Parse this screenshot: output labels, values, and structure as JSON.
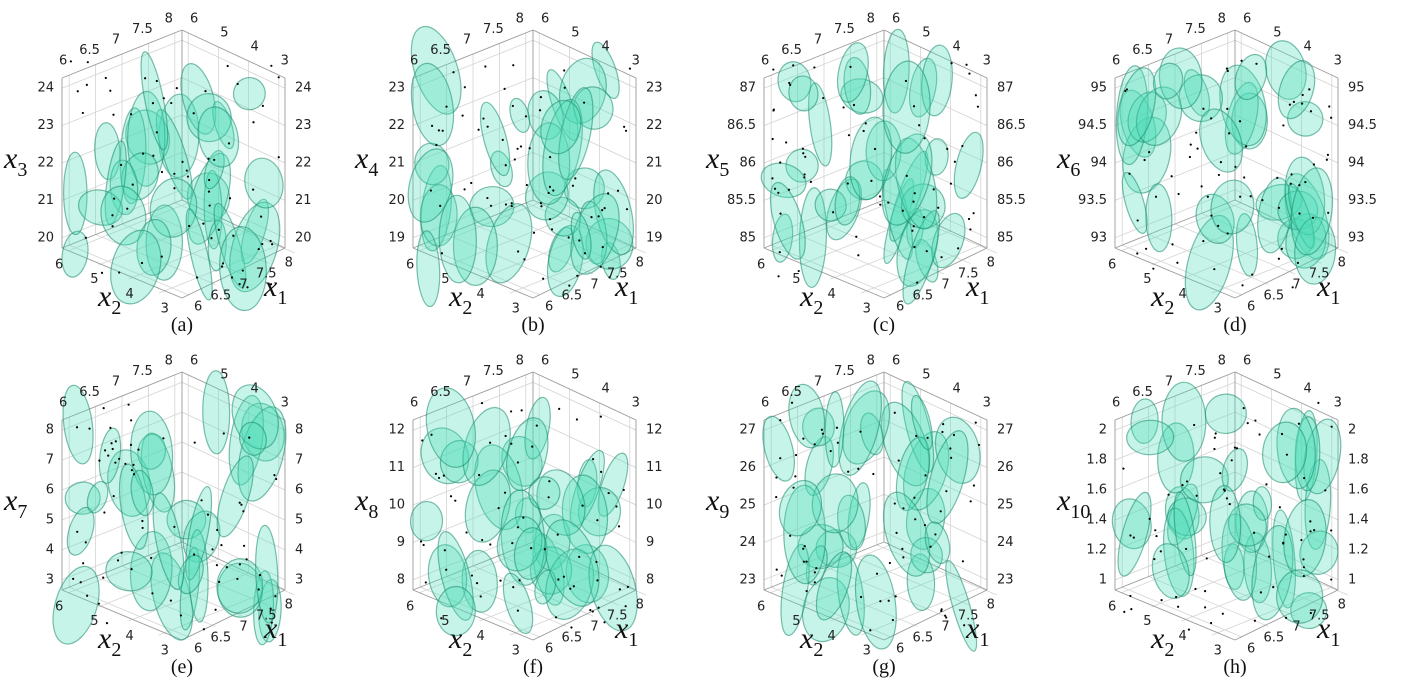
{
  "panels": [
    {
      "caption": "(a)",
      "z_label": {
        "base": "x",
        "sub": "3"
      },
      "x2_label": {
        "base": "x",
        "sub": "2"
      },
      "x1_label": {
        "base": "x",
        "sub": "1"
      },
      "x1_ticks": [
        "6",
        "6.5",
        "7",
        "7.5",
        "8"
      ],
      "x2_ticks": [
        "6",
        "5",
        "4",
        "3"
      ],
      "z_ticks": [
        "20",
        "21",
        "22",
        "23",
        "24"
      ]
    },
    {
      "caption": "(b)",
      "z_label": {
        "base": "x",
        "sub": "4"
      },
      "x2_label": {
        "base": "x",
        "sub": "2"
      },
      "x1_label": {
        "base": "x",
        "sub": "1"
      },
      "x1_ticks": [
        "6",
        "6.5",
        "7",
        "7.5",
        "8"
      ],
      "x2_ticks": [
        "6",
        "5",
        "4",
        "3"
      ],
      "z_ticks": [
        "19",
        "20",
        "21",
        "22",
        "23"
      ]
    },
    {
      "caption": "(c)",
      "z_label": {
        "base": "x",
        "sub": "5"
      },
      "x2_label": {
        "base": "x",
        "sub": "2"
      },
      "x1_label": {
        "base": "x",
        "sub": "1"
      },
      "x1_ticks": [
        "6",
        "6.5",
        "7",
        "7.5",
        "8"
      ],
      "x2_ticks": [
        "6",
        "5",
        "4",
        "3"
      ],
      "z_ticks": [
        "85",
        "85.5",
        "86",
        "86.5",
        "87"
      ]
    },
    {
      "caption": "(d)",
      "z_label": {
        "base": "x",
        "sub": "6"
      },
      "x2_label": {
        "base": "x",
        "sub": "2"
      },
      "x1_label": {
        "base": "x",
        "sub": "1"
      },
      "x1_ticks": [
        "6",
        "6.5",
        "7",
        "7.5",
        "8"
      ],
      "x2_ticks": [
        "6",
        "5",
        "4",
        "3"
      ],
      "z_ticks": [
        "93",
        "93.5",
        "94",
        "94.5",
        "95"
      ]
    },
    {
      "caption": "(e)",
      "z_label": {
        "base": "x",
        "sub": "7"
      },
      "x2_label": {
        "base": "x",
        "sub": "2"
      },
      "x1_label": {
        "base": "x",
        "sub": "1"
      },
      "x1_ticks": [
        "6",
        "6.5",
        "7",
        "7.5",
        "8"
      ],
      "x2_ticks": [
        "6",
        "5",
        "4",
        "3"
      ],
      "z_ticks": [
        "3",
        "4",
        "5",
        "6",
        "7",
        "8"
      ]
    },
    {
      "caption": "(f)",
      "z_label": {
        "base": "x",
        "sub": "8"
      },
      "x2_label": {
        "base": "x",
        "sub": "2"
      },
      "x1_label": {
        "base": "x",
        "sub": "1"
      },
      "x1_ticks": [
        "6",
        "6.5",
        "7",
        "7.5",
        "8"
      ],
      "x2_ticks": [
        "6",
        "5",
        "4",
        "3"
      ],
      "z_ticks": [
        "8",
        "9",
        "10",
        "11",
        "12"
      ]
    },
    {
      "caption": "(g)",
      "z_label": {
        "base": "x",
        "sub": "9"
      },
      "x2_label": {
        "base": "x",
        "sub": "2"
      },
      "x1_label": {
        "base": "x",
        "sub": "1"
      },
      "x1_ticks": [
        "6",
        "6.5",
        "7",
        "7.5",
        "8"
      ],
      "x2_ticks": [
        "6",
        "5",
        "4",
        "3"
      ],
      "z_ticks": [
        "23",
        "24",
        "25",
        "26",
        "27"
      ]
    },
    {
      "caption": "(h)",
      "z_label": {
        "base": "x",
        "sub": "10"
      },
      "x2_label": {
        "base": "x",
        "sub": "2"
      },
      "x1_label": {
        "base": "x",
        "sub": "1"
      },
      "x1_ticks": [
        "6",
        "6.5",
        "7",
        "7.5",
        "8"
      ],
      "x2_ticks": [
        "6",
        "5",
        "4",
        "3"
      ],
      "z_ticks": [
        "1",
        "1.2",
        "1.4",
        "1.6",
        "1.8",
        "2"
      ]
    }
  ]
}
